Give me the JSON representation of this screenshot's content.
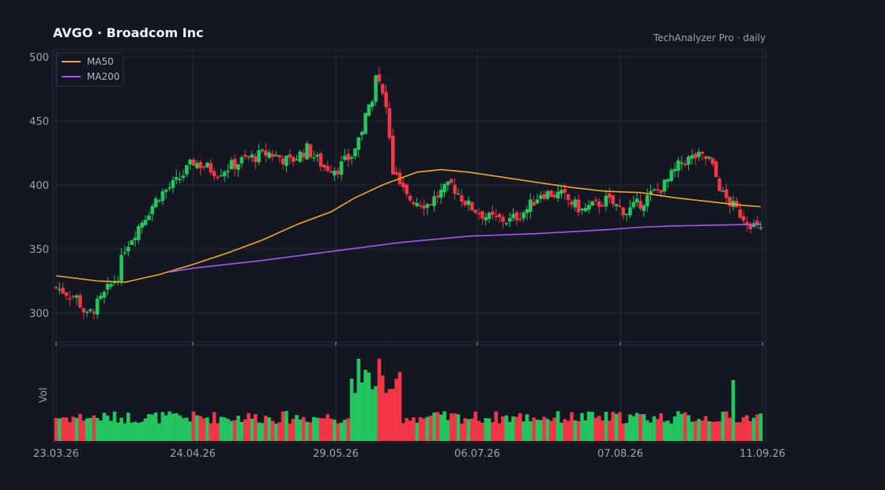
{
  "header": {
    "title": "AVGO  ·  Broadcom Inc",
    "subtitle": "TechAnalyzer Pro · daily"
  },
  "colors": {
    "background": "#131722",
    "grid": "#222a38",
    "up": "#22c55e",
    "down": "#f23645",
    "ma50": "#f5a623",
    "ma200": "#a855f7"
  },
  "chart_data": {
    "type": "candlestick",
    "title": "AVGO  ·  Broadcom Inc",
    "x_ticks": [
      "23.03.26",
      "24.04.26",
      "29.05.26",
      "06.07.26",
      "07.08.26",
      "11.09.26"
    ],
    "y_ticks": [
      "500",
      "450",
      "400",
      "350",
      "300"
    ],
    "ylim": [
      278,
      505
    ],
    "volume_label": "Vol",
    "legend": {
      "position": "top-left",
      "items": [
        "MA50",
        "MA200"
      ]
    },
    "grid": true,
    "ma50": [
      [
        0,
        329
      ],
      [
        12,
        325
      ],
      [
        20,
        324
      ],
      [
        30,
        330
      ],
      [
        40,
        338
      ],
      [
        50,
        347
      ],
      [
        60,
        357
      ],
      [
        70,
        369
      ],
      [
        80,
        379
      ],
      [
        87,
        390
      ],
      [
        95,
        400
      ],
      [
        105,
        410
      ],
      [
        112,
        412
      ],
      [
        120,
        410
      ],
      [
        130,
        406
      ],
      [
        140,
        402
      ],
      [
        150,
        398
      ],
      [
        160,
        395
      ],
      [
        170,
        394
      ],
      [
        180,
        390
      ],
      [
        190,
        387
      ],
      [
        200,
        384
      ],
      [
        205,
        383
      ]
    ],
    "ma200": [
      [
        33,
        332
      ],
      [
        40,
        335
      ],
      [
        60,
        341
      ],
      [
        80,
        348
      ],
      [
        100,
        355
      ],
      [
        120,
        360
      ],
      [
        140,
        362
      ],
      [
        160,
        365
      ],
      [
        170,
        367
      ],
      [
        180,
        368
      ],
      [
        200,
        369
      ],
      [
        205,
        369
      ]
    ]
  }
}
